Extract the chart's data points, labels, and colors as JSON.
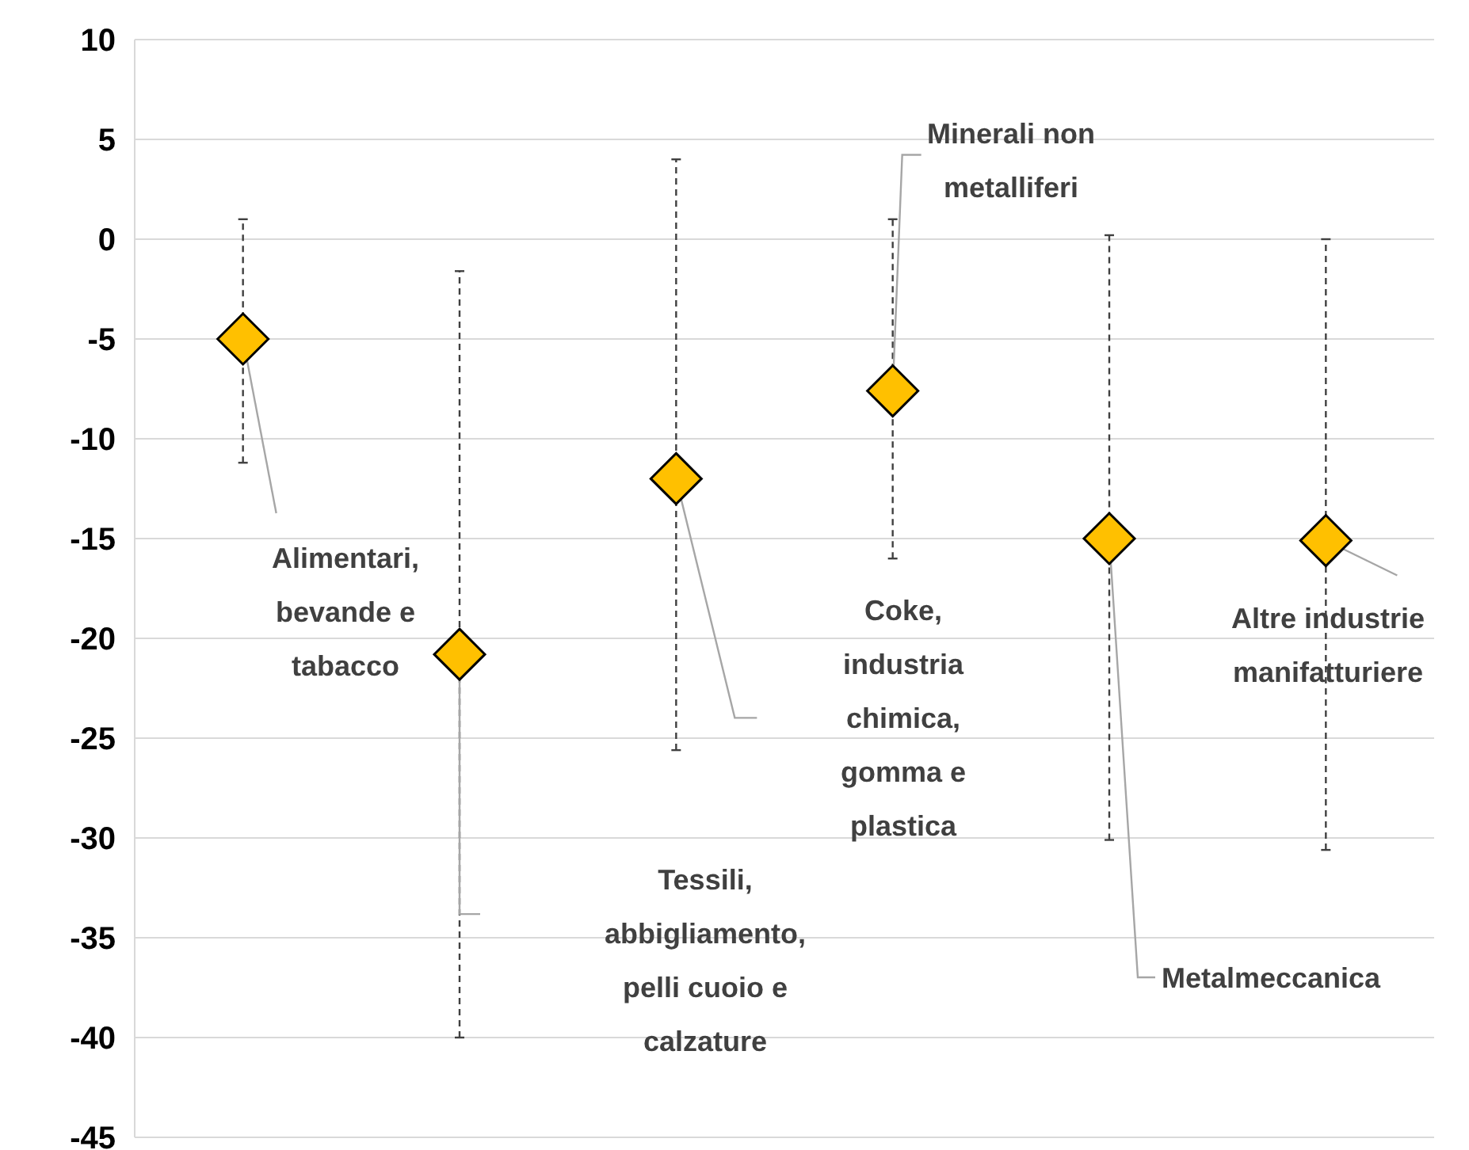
{
  "chart_data": {
    "type": "scatter",
    "categories": [
      null,
      null,
      null,
      null,
      null,
      null
    ],
    "annotations": [
      "Alimentari, bevande e tabacco",
      "Tessili, abbigliamento, pelli cuoio e calzature",
      "Coke, industria chimica, gomma e plastica",
      "Minerali non metalliferi",
      "Metalmeccanica",
      "Altre industrie manifatturiere"
    ],
    "tick_labels": "y",
    "values": [
      -5,
      -20.8,
      -12,
      -7.6,
      -15,
      -15.1
    ],
    "errors": [
      [
        -11.2,
        1
      ],
      [
        -40,
        -1.6
      ],
      [
        -25.6,
        4
      ],
      [
        -16,
        1
      ],
      [
        -30.1,
        0.2
      ],
      [
        -30.6,
        0
      ]
    ],
    "color": "#ffc000",
    "marker": "diamond",
    "ylim": [
      -45,
      10
    ],
    "yticks": [
      -45,
      -40,
      -35,
      -30,
      -25,
      -20,
      -15,
      -10,
      -5,
      0,
      5,
      10
    ],
    "grid": "y"
  }
}
